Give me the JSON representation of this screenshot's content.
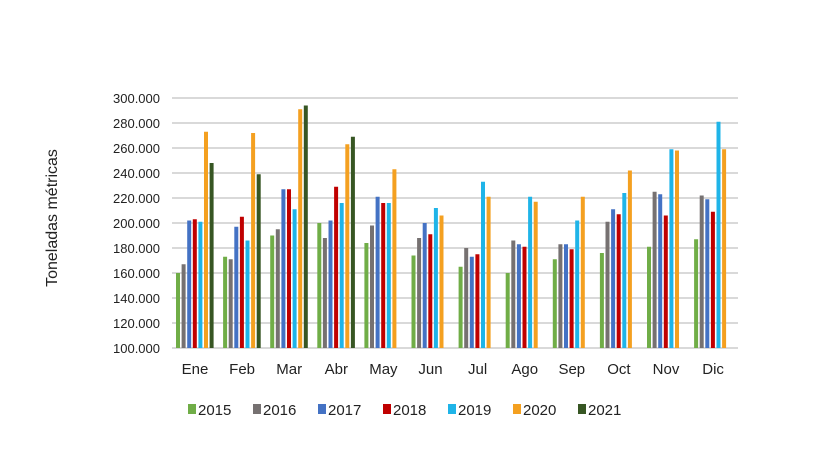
{
  "chart_data": {
    "type": "bar",
    "title": "",
    "xlabel": "",
    "ylabel": "Toneladas métricas",
    "ylim": [
      100000,
      300000
    ],
    "yticks": [
      "100.000",
      "120.000",
      "140.000",
      "160.000",
      "180.000",
      "200.000",
      "220.000",
      "240.000",
      "260.000",
      "280.000",
      "300.000"
    ],
    "grid": true,
    "legend_position": "bottom",
    "categories": [
      "Ene",
      "Feb",
      "Mar",
      "Abr",
      "May",
      "Jun",
      "Jul",
      "Ago",
      "Sep",
      "Oct",
      "Nov",
      "Dic"
    ],
    "series": [
      {
        "name": "2015",
        "color": "#70ad47",
        "values": [
          160000,
          173000,
          190000,
          200000,
          184000,
          174000,
          165000,
          160000,
          171000,
          176000,
          181000,
          187000
        ]
      },
      {
        "name": "2016",
        "color": "#767171",
        "values": [
          167000,
          171000,
          195000,
          188000,
          198000,
          188000,
          180000,
          186000,
          183000,
          201000,
          225000,
          222000
        ]
      },
      {
        "name": "2017",
        "color": "#4472c4",
        "values": [
          202000,
          197000,
          227000,
          202000,
          221000,
          200000,
          173000,
          183000,
          183000,
          211000,
          223000,
          219000
        ]
      },
      {
        "name": "2018",
        "color": "#c00000",
        "values": [
          203000,
          205000,
          227000,
          229000,
          216000,
          191000,
          175000,
          181000,
          179000,
          207000,
          206000,
          209000
        ]
      },
      {
        "name": "2019",
        "color": "#1fb4e8",
        "values": [
          201000,
          186000,
          211000,
          216000,
          216000,
          212000,
          233000,
          221000,
          202000,
          224000,
          259000,
          281000
        ]
      },
      {
        "name": "2020",
        "color": "#f4a020",
        "values": [
          273000,
          272000,
          291000,
          263000,
          243000,
          206000,
          221000,
          217000,
          221000,
          242000,
          258000,
          259000
        ]
      },
      {
        "name": "2021",
        "color": "#375623",
        "values": [
          248000,
          239000,
          294000,
          269000,
          null,
          null,
          null,
          null,
          null,
          null,
          null,
          null
        ]
      }
    ]
  }
}
